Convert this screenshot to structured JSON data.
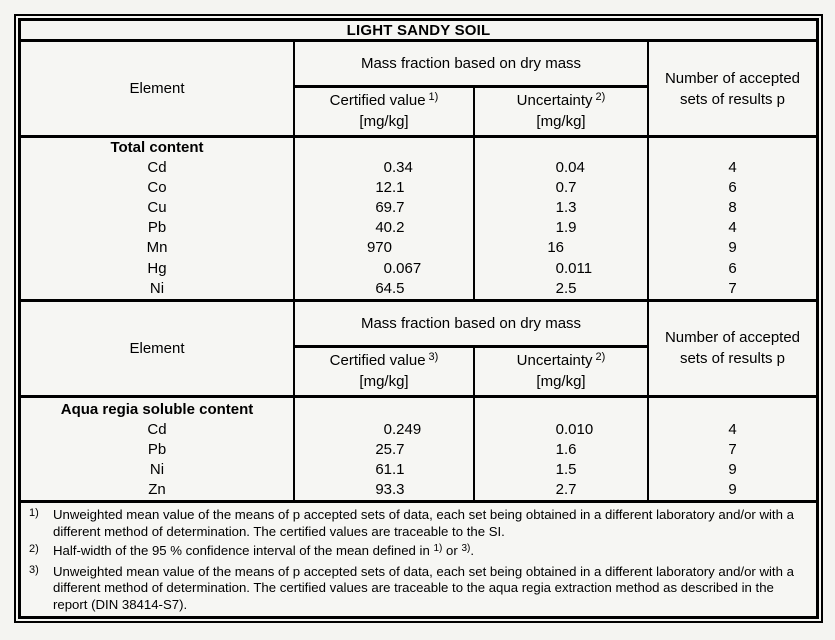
{
  "title": "LIGHT SANDY SOIL",
  "sections": [
    {
      "header": {
        "element": "Element",
        "group": "Mass fraction based on dry mass",
        "certified_label": "Certified value",
        "certified_sup": "1)",
        "certified_unit": "[mg/kg]",
        "uncertainty_label": "Uncertainty",
        "uncertainty_sup": "2)",
        "uncertainty_unit": "[mg/kg]",
        "accepted": "Number of accepted sets of results p"
      },
      "group_title": "Total content",
      "rows": [
        {
          "element": "Cd",
          "certified": "0.34",
          "uncertainty": "0.04",
          "p": "4"
        },
        {
          "element": "Co",
          "certified": "12.1",
          "uncertainty": "0.7",
          "p": "6"
        },
        {
          "element": "Cu",
          "certified": "69.7",
          "uncertainty": "1.3",
          "p": "8"
        },
        {
          "element": "Pb",
          "certified": "40.2",
          "uncertainty": "1.9",
          "p": "4"
        },
        {
          "element": "Mn",
          "certified": "970",
          "uncertainty": "16",
          "p": "9"
        },
        {
          "element": "Hg",
          "certified": "0.067",
          "uncertainty": "0.011",
          "p": "6"
        },
        {
          "element": "Ni",
          "certified": "64.5",
          "uncertainty": "2.5",
          "p": "7"
        }
      ]
    },
    {
      "header": {
        "element": "Element",
        "group": "Mass fraction based on dry mass",
        "certified_label": "Certified value",
        "certified_sup": "3)",
        "certified_unit": "[mg/kg]",
        "uncertainty_label": "Uncertainty",
        "uncertainty_sup": "2)",
        "uncertainty_unit": "[mg/kg]",
        "accepted": "Number of accepted sets of results p"
      },
      "group_title": "Aqua regia soluble content",
      "rows": [
        {
          "element": "Cd",
          "certified": "0.249",
          "uncertainty": "0.010",
          "p": "4"
        },
        {
          "element": "Pb",
          "certified": "25.7",
          "uncertainty": "1.6",
          "p": "7"
        },
        {
          "element": "Ni",
          "certified": "61.1",
          "uncertainty": "1.5",
          "p": "9"
        },
        {
          "element": "Zn",
          "certified": "93.3",
          "uncertainty": "2.7",
          "p": "9"
        }
      ]
    }
  ],
  "footnotes": {
    "fn1": {
      "marker": "1)",
      "text": "Unweighted mean value of the means of p accepted sets of data, each set being obtained in a different laboratory and/or with a different method of determination. The certified values are traceable to the SI."
    },
    "fn2": {
      "marker": "2)",
      "before": "Half-width of the 95 % confidence interval of the mean defined in ",
      "sup_a": "1)",
      "middle": " or ",
      "sup_b": "3)",
      "after": "."
    },
    "fn3": {
      "marker": "3)",
      "text": "Unweighted mean value of the means of p accepted sets of data, each set being obtained in a different laboratory and/or with a different method of determination. The certified values are traceable to the aqua regia extraction method as described in the report (DIN 38414-S7)."
    }
  }
}
